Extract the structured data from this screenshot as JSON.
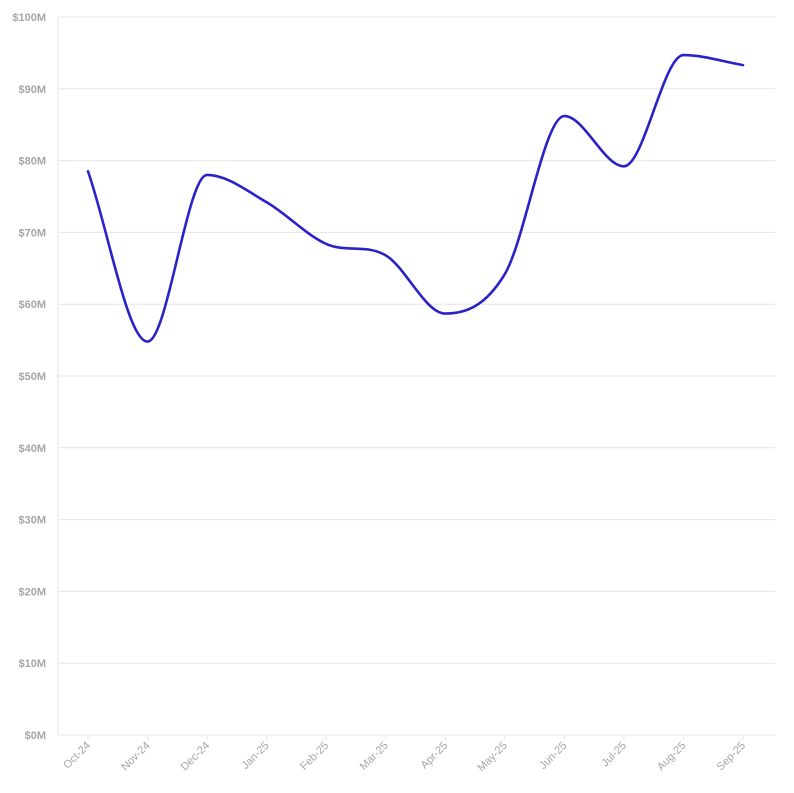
{
  "chart_data": {
    "type": "line",
    "title": "",
    "xlabel": "",
    "ylabel": "",
    "categories": [
      "Oct-24",
      "Nov-24",
      "Dec-24",
      "Jan-25",
      "Feb-25",
      "Mar-25",
      "Apr-25",
      "May-25",
      "Jun-25",
      "Jul-25",
      "Aug-25",
      "Sep-25"
    ],
    "series": [
      {
        "values": [
          78.5,
          54.8,
          78.0,
          74.2,
          68.4,
          66.8,
          58.7,
          64.2,
          86.2,
          79.2,
          94.7,
          93.3
        ]
      }
    ],
    "ylim": [
      0,
      100
    ],
    "yticks": [
      {
        "value": 0,
        "label": "$0M"
      },
      {
        "value": 10,
        "label": "$10M"
      },
      {
        "value": 20,
        "label": "$20M"
      },
      {
        "value": 30,
        "label": "$30M"
      },
      {
        "value": 40,
        "label": "$40M"
      },
      {
        "value": 50,
        "label": "$50M"
      },
      {
        "value": 60,
        "label": "$60M"
      },
      {
        "value": 70,
        "label": "$70M"
      },
      {
        "value": 80,
        "label": "$80M"
      },
      {
        "value": 90,
        "label": "$90M"
      },
      {
        "value": 100,
        "label": "$100M"
      }
    ],
    "grid": true,
    "line_color": "#2a22c9"
  }
}
